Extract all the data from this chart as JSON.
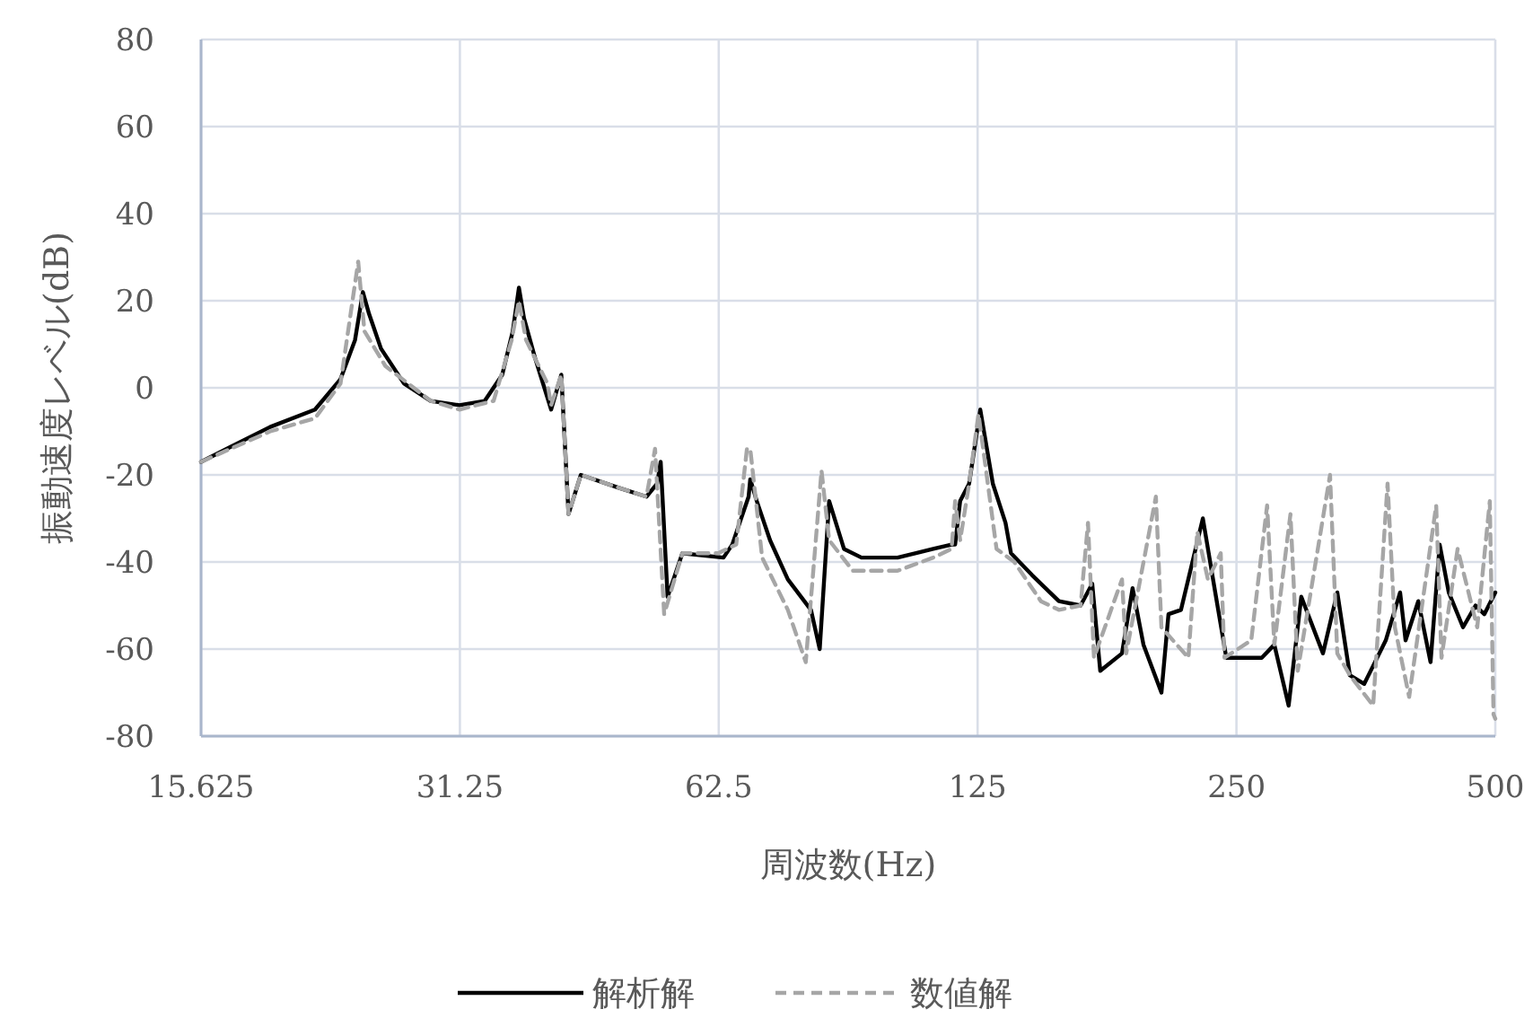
{
  "chart_data": {
    "type": "line",
    "xlabel": "周波数(Hz)",
    "ylabel": "振動速度レベル(dB)",
    "log": "x",
    "grid": true,
    "legend": "bottom",
    "xlim": [
      15.625,
      500
    ],
    "xticks": [
      15.625,
      31.25,
      62.5,
      125,
      250,
      500
    ],
    "ylim": [
      -80,
      80
    ],
    "yticks": [
      -80,
      -60,
      -40,
      -20,
      0,
      20,
      40,
      60,
      80
    ],
    "series": [
      {
        "name": "解析解",
        "color": "#000000",
        "line_style": "solid",
        "x": [
          15.625,
          18.8,
          21.2,
          22.7,
          23.6,
          24.1,
          24.5,
          25.3,
          26.9,
          28.9,
          31.2,
          33.4,
          35.0,
          36.0,
          36.6,
          37.1,
          38.2,
          39.9,
          41.0,
          41.8,
          43.2,
          47.9,
          51.5,
          53.0,
          53.5,
          54.5,
          56.7,
          63.3,
          64.8,
          67.7,
          68.0,
          69.2,
          71.7,
          75.2,
          80.0,
          81.9,
          84.0,
          87.4,
          91.6,
          100.9,
          111,
          116.6,
          117.7,
          119.3,
          122.2,
          125.9,
          130.2,
          134.7,
          136.7,
          144.6,
          155.4,
          164.7,
          169.9,
          173.6,
          184.0,
          189.3,
          194.9,
          204.5,
          208.4,
          215.5,
          228.5,
          236.2,
          243.3,
          267.5,
          276.7,
          287.5,
          297.4,
          315.2,
          327.5,
          338.7,
          352.0,
          372.9,
          387.5,
          393.2,
          406.8,
          420.4,
          430.8,
          441.4,
          458.6,
          474.2,
          485.5,
          500
        ],
        "values": [
          -17,
          -9,
          -5,
          2,
          11,
          22,
          17,
          9,
          1,
          -3,
          -4,
          -3,
          3,
          13,
          23,
          16,
          7,
          -5,
          3,
          -29,
          -20,
          -23,
          -25,
          -22,
          -17,
          -48,
          -38,
          -39,
          -36,
          -25,
          -21,
          -26,
          -35,
          -44,
          -51,
          -60,
          -26,
          -37,
          -39,
          -39,
          -37,
          -36,
          -36,
          -26,
          -22,
          -5,
          -22,
          -31,
          -38,
          -43,
          -49,
          -50,
          -45,
          -65,
          -61,
          -46,
          -59,
          -70,
          -52,
          -51,
          -30,
          -47,
          -62,
          -62,
          -59,
          -73,
          -48,
          -61,
          -47,
          -66,
          -68,
          -58,
          -47,
          -58,
          -49,
          -63,
          -36,
          -47,
          -55,
          -50,
          -52,
          -47
        ]
      },
      {
        "name": "数値解",
        "color": "#a6a6a6",
        "line_style": "dashed",
        "x": [
          15.625,
          18.8,
          21.2,
          22.7,
          23.8,
          24.2,
          25.6,
          28.9,
          31.2,
          34.2,
          35.9,
          36.6,
          37.3,
          39.5,
          39.9,
          41.0,
          41.8,
          43.2,
          47.9,
          51.5,
          52.7,
          54.0,
          56.7,
          62.4,
          65.5,
          67.4,
          68.0,
          70.2,
          75.2,
          78.9,
          82.3,
          84.0,
          89.5,
          100.9,
          111,
          116.6,
          117.7,
          119.3,
          122.2,
          125.3,
          131.5,
          137.9,
          148.1,
          155.4,
          164.7,
          168.0,
          170.7,
          184.0,
          186.1,
          201.5,
          204.5,
          219.8,
          225.1,
          231.6,
          239.7,
          242.1,
          260.1,
          271.4,
          276.7,
          288.9,
          294.6,
          321.2,
          327.5,
          338.7,
          360.5,
          374.7,
          382.1,
          397.0,
          426.8,
          432.9,
          452.0,
          476.4,
          492.7,
          497.6,
          500
        ],
        "values": [
          -17,
          -10,
          -7,
          1,
          29,
          13,
          5,
          -3,
          -5,
          -3,
          11,
          20,
          11,
          1,
          -4,
          3,
          -29,
          -20,
          -23,
          -25,
          -14,
          -52,
          -38,
          -38,
          -36,
          -14,
          -14,
          -39,
          -51,
          -63,
          -19,
          -35,
          -42,
          -42,
          -39,
          -37,
          -26,
          -35,
          -22,
          -6,
          -37,
          -40,
          -49,
          -51,
          -50,
          -31,
          -62,
          -44,
          -61,
          -25,
          -55,
          -62,
          -33,
          -44,
          -38,
          -62,
          -58,
          -27,
          -59,
          -29,
          -65,
          -20,
          -61,
          -66,
          -73,
          -22,
          -55,
          -71,
          -27,
          -62,
          -37,
          -55,
          -26,
          -75,
          -76
        ]
      }
    ]
  }
}
